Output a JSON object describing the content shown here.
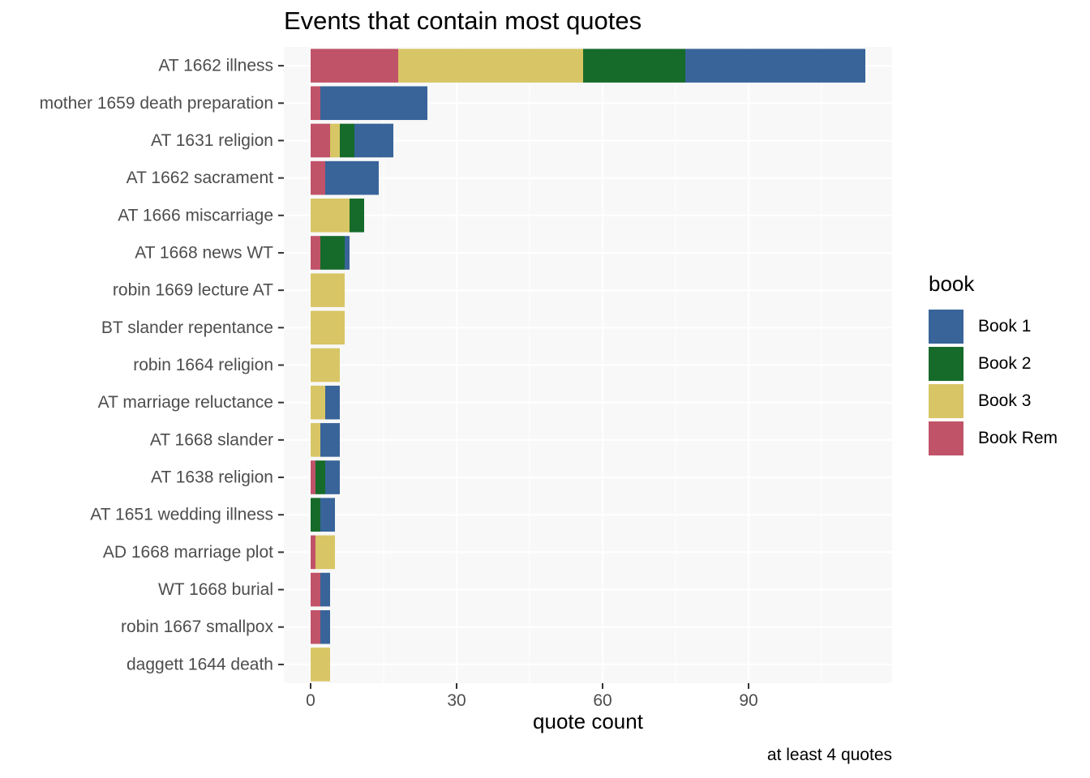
{
  "chart_data": {
    "type": "bar",
    "orientation": "horizontal",
    "stacked": true,
    "title": "Events that contain most quotes",
    "xlabel": "quote count",
    "ylabel": "",
    "caption": "at least 4 quotes",
    "xlim": [
      -5.5,
      119.5
    ],
    "xticks": [
      0,
      30,
      60,
      90
    ],
    "grid": true,
    "legend": {
      "title": "book",
      "position": "right"
    },
    "categories": [
      "AT 1662 illness",
      "mother 1659 death preparation",
      "AT 1631 religion",
      "AT 1662 sacrament",
      "AT 1666 miscarriage",
      "AT 1668 news WT",
      "robin 1669 lecture AT",
      "BT slander repentance",
      "robin 1664 religion",
      "AT marriage reluctance",
      "AT 1668 slander",
      "AT 1638 religion",
      "AT 1651 wedding illness",
      "AD 1668 marriage plot",
      "WT 1668 burial",
      "robin 1667 smallpox",
      "daggett 1644 death"
    ],
    "stack_order": [
      "Book Rem",
      "Book 3",
      "Book 2",
      "Book 1"
    ],
    "series": [
      {
        "name": "Book 1",
        "color": "#386499",
        "values": [
          37,
          22,
          8,
          11,
          0,
          1,
          0,
          0,
          0,
          3,
          4,
          3,
          3,
          0,
          2,
          2,
          0
        ]
      },
      {
        "name": "Book 2",
        "color": "#166b2a",
        "values": [
          21,
          0,
          3,
          0,
          3,
          5,
          0,
          0,
          0,
          0,
          0,
          2,
          2,
          0,
          0,
          0,
          0
        ]
      },
      {
        "name": "Book 3",
        "color": "#d8c565",
        "values": [
          38,
          0,
          2,
          0,
          8,
          0,
          7,
          7,
          6,
          3,
          2,
          0,
          0,
          4,
          0,
          0,
          4
        ]
      },
      {
        "name": "Book Rem",
        "color": "#c15369",
        "values": [
          18,
          2,
          4,
          3,
          0,
          2,
          0,
          0,
          0,
          0,
          0,
          1,
          0,
          1,
          2,
          2,
          0
        ]
      }
    ]
  }
}
